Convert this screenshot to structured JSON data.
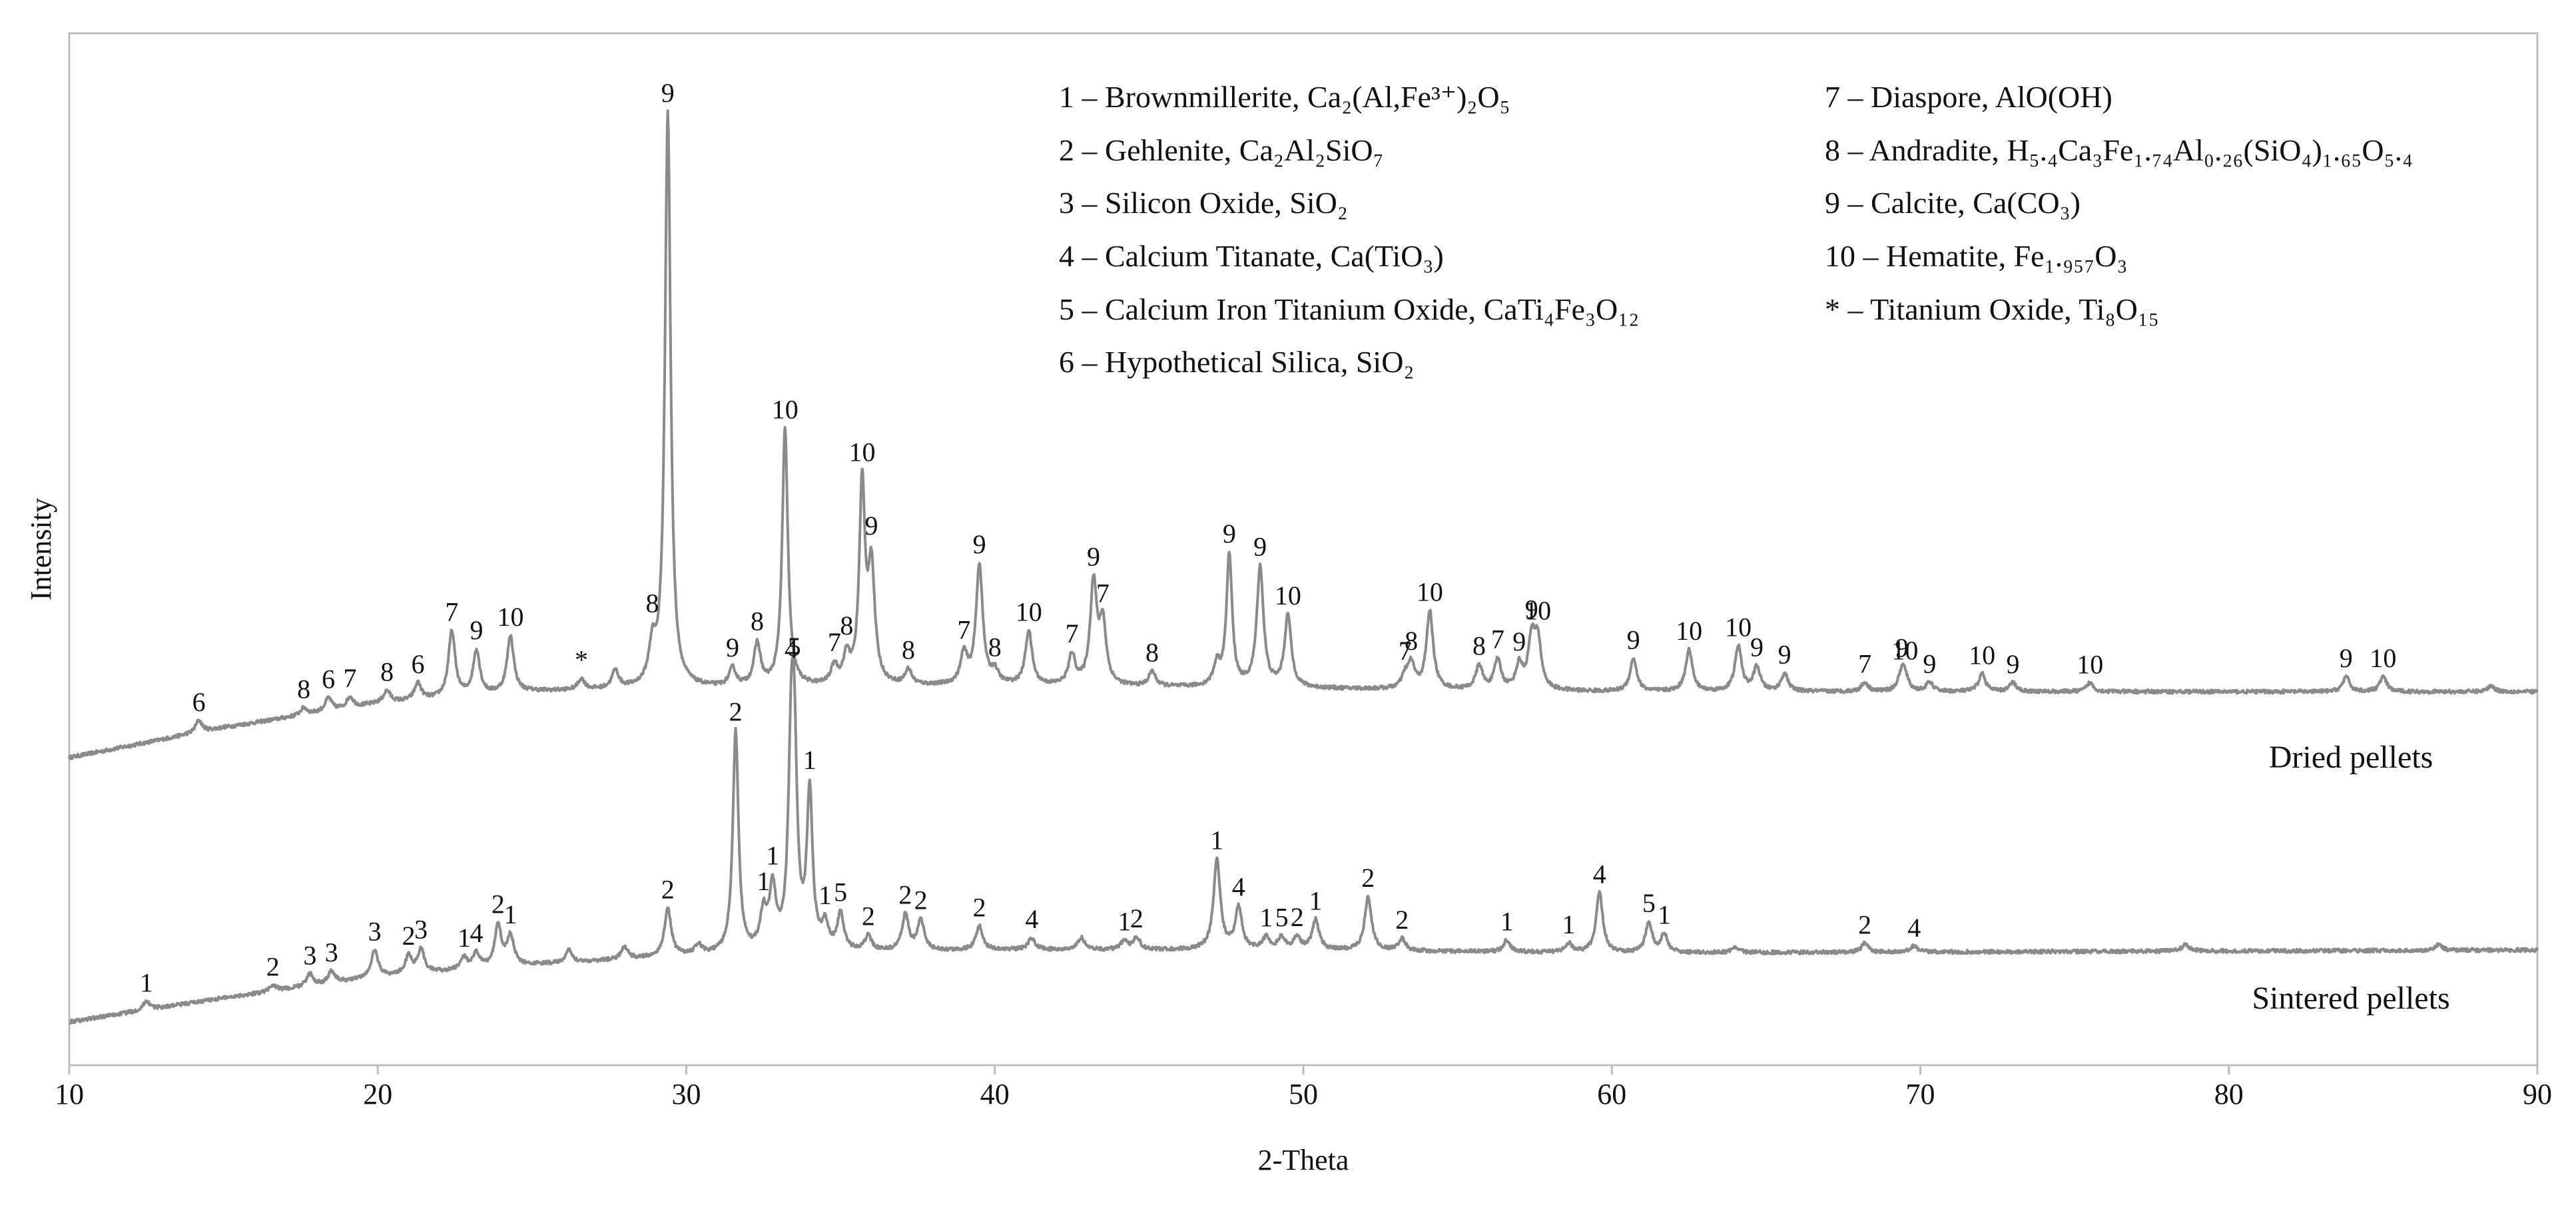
{
  "chart_data": {
    "type": "line",
    "xlabel": "2-Theta",
    "ylabel": "Intensity",
    "xlim": [
      10,
      90
    ],
    "xticks": [
      10,
      20,
      30,
      40,
      50,
      60,
      70,
      80,
      90
    ],
    "grid": false,
    "line_color": "#8a8a8a",
    "legend": [
      "1 – Brownmillerite, Ca₂(Al,Fe³⁺)₂O₅",
      "2 – Gehlenite, Ca₂Al₂SiO₇",
      "3 – Silicon Oxide, SiO₂",
      "4 – Calcium Titanate, Ca(TiO₃)",
      "5 – Calcium Iron Titanium Oxide, CaTi₄Fe₃O₁₂",
      "6 – Hypothetical Silica, SiO₂",
      "7 – Diaspore, AlO(OH)",
      "8 – Andradite, H₅.₄Ca₃Fe₁.₇₄Al₀.₂₆(SiO₄)₁.₆₅O₅.₄",
      "9 – Calcite, Ca(CO₃)",
      "10 – Hematite, Fe₁.₉₅₇O₃",
      "* – Titanium Oxide, Ti₈O₁₅"
    ],
    "legend_placement": "top-right",
    "series": [
      {
        "name": "Dried pellets",
        "baseline": [
          [
            10,
            0.0
          ],
          [
            15,
            0.05
          ],
          [
            20,
            0.09
          ],
          [
            25,
            0.11
          ],
          [
            30,
            0.115
          ],
          [
            40,
            0.12
          ],
          [
            60,
            0.11
          ],
          [
            90,
            0.11
          ]
        ],
        "peaks": [
          {
            "x": 14.2,
            "h": 0.02,
            "label": "6"
          },
          {
            "x": 17.6,
            "h": 0.012,
            "label": "8"
          },
          {
            "x": 18.4,
            "h": 0.022,
            "label": "6"
          },
          {
            "x": 19.1,
            "h": 0.018,
            "label": "7"
          },
          {
            "x": 20.3,
            "h": 0.02,
            "label": "8"
          },
          {
            "x": 21.3,
            "h": 0.028,
            "label": "6"
          },
          {
            "x": 22.4,
            "h": 0.11,
            "label": "7"
          },
          {
            "x": 23.2,
            "h": 0.075,
            "label": "9"
          },
          {
            "x": 24.3,
            "h": 0.095,
            "label": "10"
          },
          {
            "x": 26.6,
            "h": 0.018,
            "label": "*"
          },
          {
            "x": 27.7,
            "h": 0.03,
            "label": ""
          },
          {
            "x": 28.9,
            "h": 0.06,
            "label": "8"
          },
          {
            "x": 29.4,
            "h": 0.96,
            "label": "9"
          },
          {
            "x": 31.5,
            "h": 0.03,
            "label": "9"
          },
          {
            "x": 32.3,
            "h": 0.07,
            "label": "8"
          },
          {
            "x": 33.2,
            "h": 0.43,
            "label": "10"
          },
          {
            "x": 34.8,
            "h": 0.03,
            "label": "7"
          },
          {
            "x": 35.2,
            "h": 0.045,
            "label": "8"
          },
          {
            "x": 35.7,
            "h": 0.33,
            "label": "10"
          },
          {
            "x": 36.0,
            "h": 0.19,
            "label": "9"
          },
          {
            "x": 37.2,
            "h": 0.025,
            "label": "8"
          },
          {
            "x": 39.0,
            "h": 0.05,
            "label": "7"
          },
          {
            "x": 39.5,
            "h": 0.2,
            "label": "9"
          },
          {
            "x": 40.0,
            "h": 0.02,
            "label": "8"
          },
          {
            "x": 41.1,
            "h": 0.09,
            "label": "10"
          },
          {
            "x": 42.5,
            "h": 0.05,
            "label": "7"
          },
          {
            "x": 43.2,
            "h": 0.17,
            "label": "9"
          },
          {
            "x": 43.5,
            "h": 0.1,
            "label": "7"
          },
          {
            "x": 45.1,
            "h": 0.025,
            "label": "8"
          },
          {
            "x": 47.2,
            "h": 0.035,
            "label": ""
          },
          {
            "x": 47.6,
            "h": 0.22,
            "label": "9"
          },
          {
            "x": 48.6,
            "h": 0.2,
            "label": "9"
          },
          {
            "x": 49.5,
            "h": 0.12,
            "label": "10"
          },
          {
            "x": 53.3,
            "h": 0.02,
            "label": "7"
          },
          {
            "x": 53.5,
            "h": 0.04,
            "label": "8"
          },
          {
            "x": 54.1,
            "h": 0.13,
            "label": "10"
          },
          {
            "x": 55.7,
            "h": 0.04,
            "label": "8"
          },
          {
            "x": 56.3,
            "h": 0.05,
            "label": "7"
          },
          {
            "x": 57.0,
            "h": 0.04,
            "label": "9"
          },
          {
            "x": 57.4,
            "h": 0.08,
            "label": "9"
          },
          {
            "x": 57.6,
            "h": 0.08,
            "label": "10"
          },
          {
            "x": 60.7,
            "h": 0.055,
            "label": "9"
          },
          {
            "x": 62.5,
            "h": 0.07,
            "label": "10"
          },
          {
            "x": 64.1,
            "h": 0.075,
            "label": "10"
          },
          {
            "x": 64.7,
            "h": 0.04,
            "label": "9"
          },
          {
            "x": 65.6,
            "h": 0.03,
            "label": "9"
          },
          {
            "x": 68.2,
            "h": 0.015,
            "label": "7"
          },
          {
            "x": 69.4,
            "h": 0.03,
            "label": "9"
          },
          {
            "x": 69.5,
            "h": 0.02,
            "label": "10"
          },
          {
            "x": 70.3,
            "h": 0.015,
            "label": "9"
          },
          {
            "x": 72.0,
            "h": 0.03,
            "label": "10"
          },
          {
            "x": 73.0,
            "h": 0.015,
            "label": "9"
          },
          {
            "x": 75.5,
            "h": 0.015,
            "label": "10"
          },
          {
            "x": 83.8,
            "h": 0.025,
            "label": "9"
          },
          {
            "x": 85.0,
            "h": 0.025,
            "label": "10"
          },
          {
            "x": 88.5,
            "h": 0.01,
            "label": ""
          }
        ]
      },
      {
        "name": "Sintered pellets",
        "baseline": [
          [
            10,
            0.0
          ],
          [
            15,
            0.04
          ],
          [
            20,
            0.075
          ],
          [
            25,
            0.095
          ],
          [
            30,
            0.11
          ],
          [
            40,
            0.12
          ],
          [
            50,
            0.12
          ],
          [
            60,
            0.115
          ],
          [
            90,
            0.12
          ]
        ],
        "peaks": [
          {
            "x": 12.5,
            "h": 0.015,
            "label": "1"
          },
          {
            "x": 16.6,
            "h": 0.01,
            "label": "2"
          },
          {
            "x": 17.8,
            "h": 0.02,
            "label": "3"
          },
          {
            "x": 18.5,
            "h": 0.02,
            "label": "3"
          },
          {
            "x": 19.9,
            "h": 0.045,
            "label": "3"
          },
          {
            "x": 21.0,
            "h": 0.03,
            "label": "2"
          },
          {
            "x": 21.4,
            "h": 0.04,
            "label": "3"
          },
          {
            "x": 22.8,
            "h": 0.02,
            "label": "1"
          },
          {
            "x": 23.2,
            "h": 0.025,
            "label": "4"
          },
          {
            "x": 23.9,
            "h": 0.07,
            "label": "2"
          },
          {
            "x": 24.3,
            "h": 0.05,
            "label": "1"
          },
          {
            "x": 26.2,
            "h": 0.02,
            "label": ""
          },
          {
            "x": 28.0,
            "h": 0.02,
            "label": ""
          },
          {
            "x": 29.4,
            "h": 0.08,
            "label": "2"
          },
          {
            "x": 30.4,
            "h": 0.015,
            "label": ""
          },
          {
            "x": 31.6,
            "h": 0.37,
            "label": "2"
          },
          {
            "x": 32.5,
            "h": 0.06,
            "label": "1"
          },
          {
            "x": 32.8,
            "h": 0.1,
            "label": "1"
          },
          {
            "x": 33.4,
            "h": 0.29,
            "label": "4"
          },
          {
            "x": 33.5,
            "h": 0.29,
            "label": "5"
          },
          {
            "x": 34.0,
            "h": 0.26,
            "label": "1"
          },
          {
            "x": 34.5,
            "h": 0.04,
            "label": "1"
          },
          {
            "x": 35.0,
            "h": 0.06,
            "label": "5"
          },
          {
            "x": 35.9,
            "h": 0.025,
            "label": "2"
          },
          {
            "x": 37.1,
            "h": 0.06,
            "label": "2"
          },
          {
            "x": 37.6,
            "h": 0.05,
            "label": "2"
          },
          {
            "x": 39.5,
            "h": 0.04,
            "label": "2"
          },
          {
            "x": 41.2,
            "h": 0.02,
            "label": "4"
          },
          {
            "x": 42.8,
            "h": 0.02,
            "label": ""
          },
          {
            "x": 44.2,
            "h": 0.015,
            "label": "1"
          },
          {
            "x": 44.6,
            "h": 0.02,
            "label": "2"
          },
          {
            "x": 47.2,
            "h": 0.15,
            "label": "1"
          },
          {
            "x": 47.9,
            "h": 0.07,
            "label": "4"
          },
          {
            "x": 48.8,
            "h": 0.02,
            "label": "1"
          },
          {
            "x": 49.3,
            "h": 0.02,
            "label": "5"
          },
          {
            "x": 49.8,
            "h": 0.02,
            "label": "2"
          },
          {
            "x": 50.4,
            "h": 0.05,
            "label": "1"
          },
          {
            "x": 52.1,
            "h": 0.09,
            "label": "2"
          },
          {
            "x": 53.2,
            "h": 0.02,
            "label": "2"
          },
          {
            "x": 56.6,
            "h": 0.02,
            "label": "1"
          },
          {
            "x": 58.6,
            "h": 0.015,
            "label": "1"
          },
          {
            "x": 59.6,
            "h": 0.1,
            "label": "4"
          },
          {
            "x": 61.2,
            "h": 0.05,
            "label": "5"
          },
          {
            "x": 61.7,
            "h": 0.03,
            "label": "1"
          },
          {
            "x": 64.0,
            "h": 0.01,
            "label": ""
          },
          {
            "x": 68.2,
            "h": 0.015,
            "label": "2"
          },
          {
            "x": 69.8,
            "h": 0.01,
            "label": "4"
          },
          {
            "x": 78.6,
            "h": 0.012,
            "label": ""
          },
          {
            "x": 86.8,
            "h": 0.01,
            "label": ""
          }
        ]
      }
    ]
  }
}
